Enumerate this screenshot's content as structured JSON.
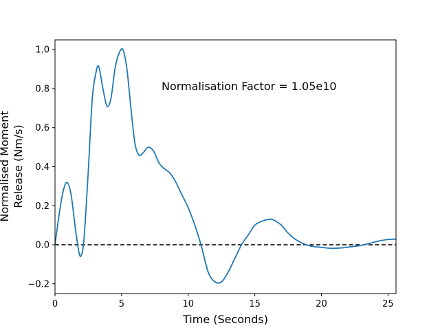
{
  "chart_data": {
    "type": "line",
    "title": "",
    "xlabel": "Time (Seconds)",
    "ylabel_lines": [
      "Normalised Moment",
      "Release (Nm/s)"
    ],
    "xlim": [
      0,
      25.6
    ],
    "ylim": [
      -0.25,
      1.05
    ],
    "xticks": [
      0,
      5,
      10,
      15,
      20,
      25
    ],
    "xtick_labels": [
      "0",
      "5",
      "10",
      "15",
      "20",
      "25"
    ],
    "yticks": [
      -0.2,
      0.0,
      0.2,
      0.4,
      0.6,
      0.8,
      1.0
    ],
    "ytick_labels": [
      "−0.2",
      "0.0",
      "0.2",
      "0.4",
      "0.6",
      "0.8",
      "1.0"
    ],
    "grid": false,
    "annotation": "Normalisation Factor = 1.05e10",
    "reference_line": {
      "y": 0.0,
      "style": "dashed",
      "color": "#000000"
    },
    "series": [
      {
        "color": "#1f77b4",
        "x": [
          0,
          0.3,
          0.6,
          0.9,
          1.2,
          1.5,
          1.8,
          2.0,
          2.2,
          2.5,
          2.8,
          3.1,
          3.3,
          3.6,
          3.9,
          4.2,
          4.5,
          4.8,
          5.1,
          5.4,
          5.7,
          6.0,
          6.3,
          6.6,
          7.0,
          7.4,
          7.8,
          8.2,
          8.6,
          9.0,
          9.5,
          10.0,
          10.5,
          11.0,
          11.5,
          12.0,
          12.5,
          13.0,
          13.5,
          14.0,
          14.5,
          15.0,
          15.5,
          16.0,
          16.3,
          16.6,
          17.0,
          17.5,
          18.0,
          18.5,
          19.0,
          19.5,
          20.0,
          20.5,
          21.0,
          21.5,
          22.0,
          22.5,
          23.0,
          23.5,
          24.0,
          24.5,
          25.0,
          25.6
        ],
        "y": [
          0.0,
          0.15,
          0.27,
          0.32,
          0.26,
          0.1,
          -0.04,
          -0.05,
          0.05,
          0.38,
          0.75,
          0.89,
          0.91,
          0.8,
          0.71,
          0.75,
          0.9,
          0.98,
          1.0,
          0.9,
          0.7,
          0.52,
          0.46,
          0.47,
          0.5,
          0.48,
          0.42,
          0.39,
          0.37,
          0.33,
          0.26,
          0.19,
          0.1,
          -0.01,
          -0.14,
          -0.19,
          -0.19,
          -0.14,
          -0.07,
          0.0,
          0.05,
          0.1,
          0.12,
          0.13,
          0.13,
          0.12,
          0.1,
          0.06,
          0.03,
          0.01,
          -0.003,
          -0.01,
          -0.013,
          -0.017,
          -0.018,
          -0.016,
          -0.012,
          -0.008,
          -0.003,
          0.005,
          0.014,
          0.022,
          0.027,
          0.029
        ]
      }
    ]
  }
}
